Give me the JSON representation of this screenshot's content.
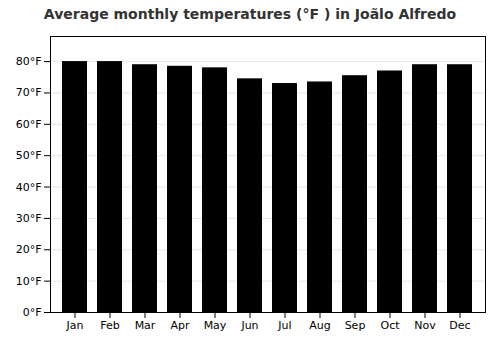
{
  "chart_data": {
    "type": "bar",
    "title": "Average monthly temperatures (°F ) in Joãlo Alfredo",
    "categories": [
      "Jan",
      "Feb",
      "Mar",
      "Apr",
      "May",
      "Jun",
      "Jul",
      "Aug",
      "Sep",
      "Oct",
      "Nov",
      "Dec"
    ],
    "values": [
      80,
      80,
      79,
      78.5,
      78,
      74.5,
      73,
      73.5,
      75.5,
      77,
      79,
      79
    ],
    "ylim": [
      0,
      88
    ],
    "yticks": [
      {
        "value": 0,
        "label": "0°F"
      },
      {
        "value": 10,
        "label": "10°F"
      },
      {
        "value": 20,
        "label": "20°F"
      },
      {
        "value": 30,
        "label": "30°F"
      },
      {
        "value": 40,
        "label": "40°F"
      },
      {
        "value": 50,
        "label": "50°F"
      },
      {
        "value": 60,
        "label": "60°F"
      },
      {
        "value": 70,
        "label": "70°F"
      },
      {
        "value": 80,
        "label": "80°F"
      }
    ],
    "grid": true
  }
}
